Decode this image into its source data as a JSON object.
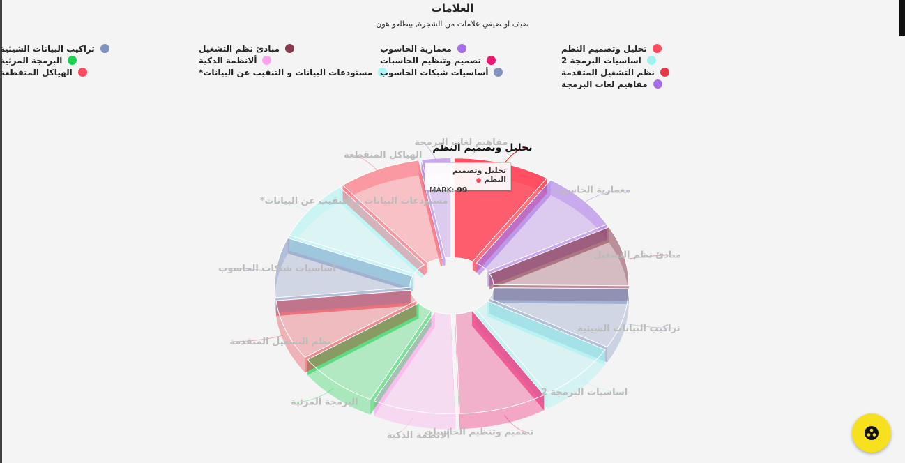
{
  "title": "العلامات",
  "subtitle": "ضيف او ضيفي علامات من الشجرة, بيطلعو هون",
  "tooltip": {
    "name": "تحليل وتصميم النظم",
    "label": "MARK:",
    "value": "99"
  },
  "fab": {
    "icon": "fab-menu-icon"
  },
  "chart_data": {
    "type": "pie",
    "variant": "3d-donut",
    "highlighted": "تحليل وتصميم النظم",
    "legend_position": "top",
    "series": [
      {
        "name": "MARK",
        "points": [
          {
            "name": "تحليل وتصميم النظم",
            "value": 99,
            "color": "#ff4d5e"
          },
          {
            "name": "معمارية الحاسوب",
            "value": 85,
            "color": "#a46ee6"
          },
          {
            "name": "مبادئ نظم التشغيل",
            "value": 85,
            "color": "#8a3a4e"
          },
          {
            "name": "تراكيب البيانات الشيئية",
            "value": 85,
            "color": "#7f93c1"
          },
          {
            "name": "اساسيات البرمجة 2",
            "value": 85,
            "color": "#9ef2f0"
          },
          {
            "name": "تصميم وتنظيم الحاسبات",
            "value": 90,
            "color": "#f0186e"
          },
          {
            "name": "ألانظمة الذكية",
            "value": 85,
            "color": "#fba4ec"
          },
          {
            "name": "البرمجة المرئية",
            "value": 85,
            "color": "#1bd150"
          },
          {
            "name": "نظم التشغيل المتقدمة",
            "value": 85,
            "color": "#e63946"
          },
          {
            "name": "أساسيات شبكات الحاسوب",
            "value": 85,
            "color": "#7f93c1"
          },
          {
            "name": "مستودعات البيانات و التنقيب عن البيانات*",
            "value": 85,
            "color": "#a8f6f6"
          },
          {
            "name": "الهياكل المتقطعة",
            "value": 85,
            "color": "#ff4d5e"
          },
          {
            "name": "مفاهيم لغات البرمجة",
            "value": 30,
            "color": "#a46ee6"
          }
        ]
      }
    ]
  }
}
